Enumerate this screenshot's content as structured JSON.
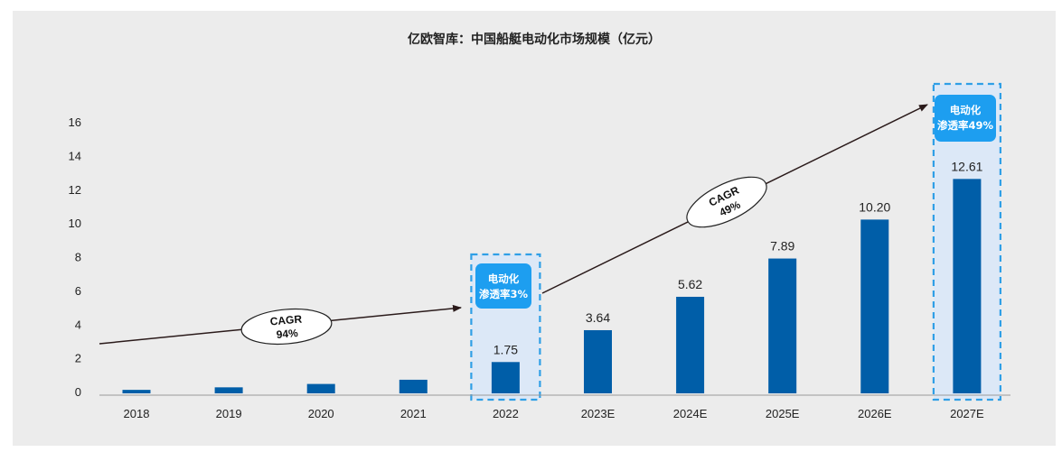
{
  "chart_data": {
    "type": "bar",
    "title": "亿欧智库：中国船艇电动化市场规模（亿元）",
    "xlabel": "",
    "ylabel": "",
    "categories": [
      "2018",
      "2019",
      "2020",
      "2021",
      "2022",
      "2023E",
      "2024E",
      "2025E",
      "2026E",
      "2027E"
    ],
    "values": [
      0.1,
      0.25,
      0.45,
      0.7,
      1.75,
      3.64,
      5.62,
      7.89,
      10.2,
      12.61
    ],
    "data_labels": [
      "",
      "",
      "",
      "",
      "1.75",
      "3.64",
      "5.62",
      "7.89",
      "10.20",
      "12.61"
    ],
    "yticks": [
      0,
      2,
      4,
      6,
      8,
      10,
      12,
      14,
      16
    ],
    "ylim": [
      0,
      16
    ],
    "grid": false,
    "legend": "none",
    "bar_color": "#005ea8",
    "highlight_fill": "#dce8f7",
    "highlight_border": "#2f9fe6",
    "badge_color": "#1d9ef0",
    "annotations": {
      "cagr_1": {
        "label": "CAGR",
        "value": "94%"
      },
      "cagr_2": {
        "label": "CAGR",
        "value": "49%"
      },
      "badge_2022": {
        "line1": "电动化",
        "line2": "渗透率3%"
      },
      "badge_2027": {
        "line1": "电动化",
        "line2": "渗透率49%"
      }
    }
  }
}
